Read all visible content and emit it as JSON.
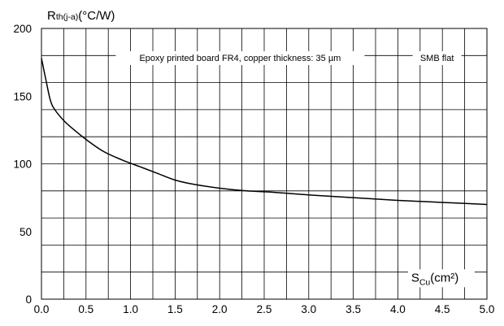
{
  "chart_data": {
    "type": "line",
    "title": "",
    "ylabel": {
      "main": "R",
      "sub": "th(j-a)",
      "unit": "(°C/W)"
    },
    "xlabel": {
      "main": "S",
      "sub": "Cu",
      "unit": "(cm²)"
    },
    "annotation": "Epoxy printed board FR4, copper thickness: 35 µm",
    "legend_label": "SMB flat",
    "xlim": [
      0,
      5
    ],
    "ylim": [
      0,
      200
    ],
    "x_ticks": [
      "0.0",
      "0.5",
      "1.0",
      "1.5",
      "2.0",
      "2.5",
      "3.0",
      "3.5",
      "4.0",
      "4.5",
      "5.0"
    ],
    "y_ticks": [
      "0",
      "50",
      "100",
      "150",
      "200"
    ],
    "grid": true,
    "series": [
      {
        "x": [
          0.0,
          0.05,
          0.1,
          0.15,
          0.25,
          0.35,
          0.5,
          0.7,
          0.9,
          1.1,
          1.3,
          1.5,
          1.7,
          2.0,
          2.3,
          2.6,
          3.0,
          3.5,
          4.0,
          4.5,
          5.0
        ],
        "values": [
          178,
          162,
          147,
          140,
          132,
          126,
          118,
          109,
          103,
          98,
          93,
          88,
          85,
          82,
          80,
          79,
          77,
          75,
          73,
          71.5,
          70
        ]
      }
    ]
  }
}
